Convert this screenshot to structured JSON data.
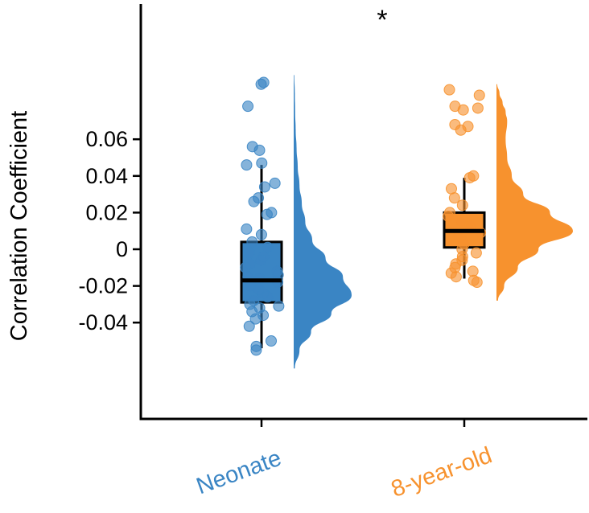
{
  "chart_data": {
    "type": "raincloud",
    "title": "",
    "ylabel": "Correlation Coefficient",
    "xlabel": "",
    "ylim": [
      -0.08,
      0.133
    ],
    "yticks": [
      0.06,
      0.04,
      0.02,
      0,
      -0.02,
      -0.04
    ],
    "ytick_labels": [
      "0.06",
      "0.04",
      "0.02",
      "0",
      "-0.02",
      "-0.04"
    ],
    "categories": [
      "Neonate",
      "8-year-old"
    ],
    "significance": "*",
    "grid": false,
    "legend": "none",
    "series": [
      {
        "category": "Neonate",
        "color": "#3a85c4",
        "box": {
          "whisker_low": -0.054,
          "q1": -0.029,
          "median": -0.017,
          "q3": 0.004,
          "whisker_high": 0.046
        },
        "points": [
          0.09,
          0.091,
          0.078,
          0.056,
          0.054,
          0.047,
          0.046,
          0.036,
          0.034,
          0.028,
          0.026,
          0.02,
          0.019,
          0.011,
          0.008,
          0.004,
          0.001,
          -0.002,
          -0.004,
          -0.006,
          -0.008,
          -0.01,
          -0.012,
          -0.014,
          -0.015,
          -0.016,
          -0.018,
          -0.02,
          -0.022,
          -0.024,
          -0.026,
          -0.028,
          -0.03,
          -0.031,
          -0.032,
          -0.034,
          -0.036,
          -0.038,
          -0.042,
          -0.05,
          -0.053,
          -0.055
        ],
        "density": [
          [
            -0.065,
            0.02
          ],
          [
            -0.055,
            0.1
          ],
          [
            -0.045,
            0.3
          ],
          [
            -0.035,
            0.65
          ],
          [
            -0.025,
            1.0
          ],
          [
            -0.015,
            0.85
          ],
          [
            -0.005,
            0.55
          ],
          [
            0.005,
            0.32
          ],
          [
            0.015,
            0.2
          ],
          [
            0.025,
            0.14
          ],
          [
            0.035,
            0.1
          ],
          [
            0.045,
            0.07
          ],
          [
            0.055,
            0.05
          ],
          [
            0.065,
            0.035
          ],
          [
            0.075,
            0.025
          ],
          [
            0.085,
            0.02
          ],
          [
            0.095,
            0.01
          ]
        ]
      },
      {
        "category": "8-year-old",
        "color": "#f7922e",
        "box": {
          "whisker_low": -0.016,
          "q1": 0.001,
          "median": 0.01,
          "q3": 0.02,
          "whisker_high": 0.039
        },
        "points": [
          0.087,
          0.084,
          0.078,
          0.077,
          0.076,
          0.068,
          0.067,
          0.065,
          0.04,
          0.039,
          0.033,
          0.028,
          0.024,
          0.02,
          0.018,
          0.015,
          0.013,
          0.011,
          0.009,
          0.007,
          0.005,
          0.003,
          0.0,
          -0.002,
          -0.004,
          -0.006,
          -0.008,
          -0.01,
          -0.012,
          -0.013,
          -0.015,
          -0.017,
          -0.018
        ],
        "density": [
          [
            -0.028,
            0.02
          ],
          [
            -0.02,
            0.1
          ],
          [
            -0.01,
            0.28
          ],
          [
            0.0,
            0.55
          ],
          [
            0.01,
            1.0
          ],
          [
            0.02,
            0.7
          ],
          [
            0.03,
            0.35
          ],
          [
            0.04,
            0.2
          ],
          [
            0.05,
            0.14
          ],
          [
            0.06,
            0.12
          ],
          [
            0.07,
            0.14
          ],
          [
            0.075,
            0.12
          ],
          [
            0.08,
            0.08
          ],
          [
            0.085,
            0.04
          ],
          [
            0.09,
            0.01
          ]
        ]
      }
    ]
  }
}
